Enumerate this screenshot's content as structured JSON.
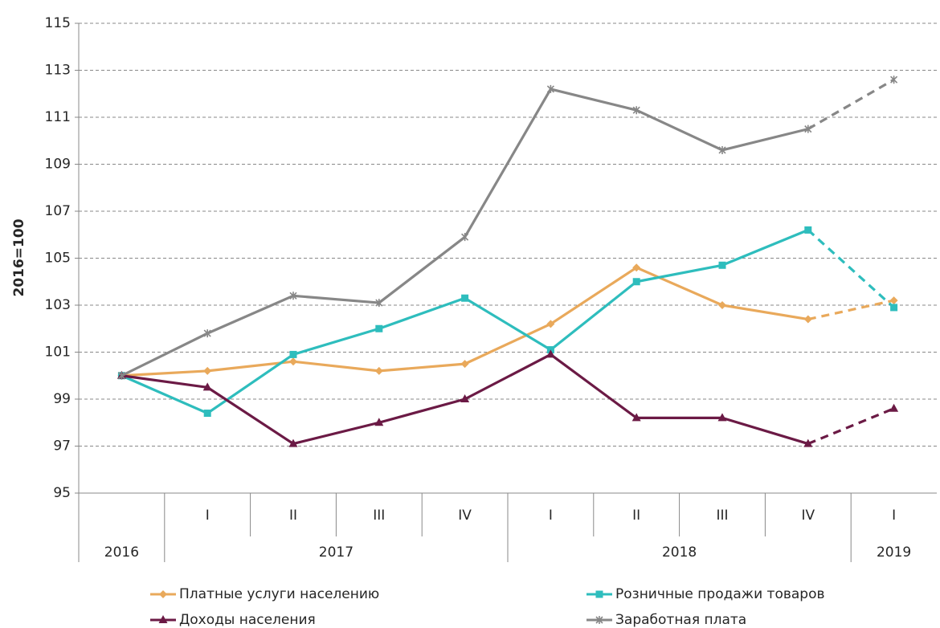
{
  "chart_data": {
    "type": "line",
    "ylabel": "2016=100",
    "categories": [
      null,
      "I",
      "II",
      "III",
      "IV",
      "I",
      "II",
      "III",
      "IV",
      "I"
    ],
    "category_groups": [
      {
        "label": "2016",
        "count": 1
      },
      {
        "label": "2017",
        "count": 4
      },
      {
        "label": "2018",
        "count": 4
      },
      {
        "label": "2019",
        "count": 1
      }
    ],
    "ylim": [
      95,
      115
    ],
    "yticks": [
      95,
      97,
      99,
      101,
      103,
      105,
      107,
      109,
      111,
      113,
      115
    ],
    "grid": true,
    "dashed_from_index": 8,
    "series": [
      {
        "name": "Платные услуги населению",
        "color": "#e9a95b",
        "marker": "diamond",
        "values": [
          100,
          100.2,
          100.6,
          100.2,
          100.5,
          102.2,
          104.6,
          103.0,
          102.4,
          103.2
        ]
      },
      {
        "name": "Розничные продажи товаров",
        "color": "#2ebdbd",
        "marker": "square",
        "values": [
          100,
          98.4,
          100.9,
          102.0,
          103.3,
          101.1,
          104.0,
          104.7,
          106.2,
          102.9
        ]
      },
      {
        "name": "Доходы населения",
        "color": "#6b1a45",
        "marker": "triangle",
        "values": [
          100,
          99.5,
          97.1,
          98.0,
          99.0,
          100.9,
          98.2,
          98.2,
          97.1,
          98.6
        ]
      },
      {
        "name": "Заработная плата",
        "color": "#878787",
        "marker": "star",
        "values": [
          100,
          101.8,
          103.4,
          103.1,
          105.9,
          112.2,
          111.3,
          109.6,
          110.5,
          112.6
        ]
      }
    ]
  }
}
